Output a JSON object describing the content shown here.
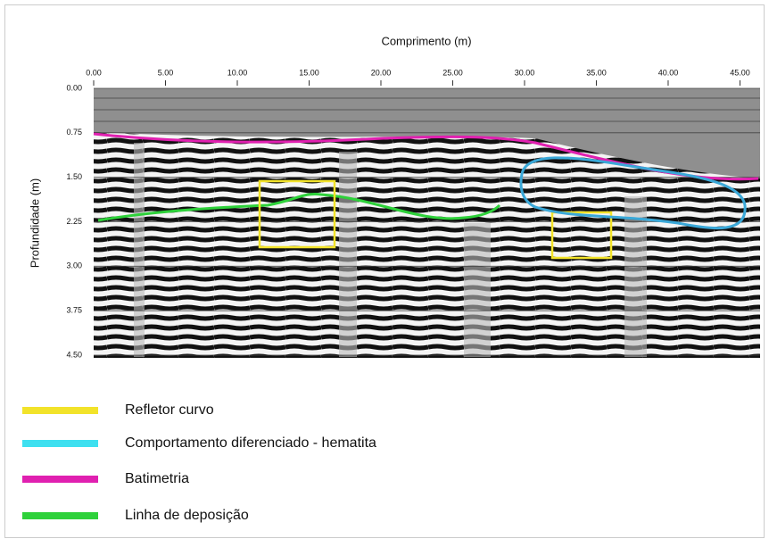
{
  "chart_data": {
    "type": "radargram",
    "xlabel": "Comprimento (m)",
    "ylabel": "Profundidade (m)",
    "xlim": [
      0,
      46.4
    ],
    "xticks": [
      {
        "value": 0,
        "label": "0.00"
      },
      {
        "value": 5,
        "label": "5.00"
      },
      {
        "value": 10,
        "label": "10.00"
      },
      {
        "value": 15,
        "label": "15.00"
      },
      {
        "value": 20,
        "label": "20.00"
      },
      {
        "value": 25,
        "label": "25.00"
      },
      {
        "value": 30,
        "label": "30.00"
      },
      {
        "value": 35,
        "label": "35.00"
      },
      {
        "value": 40,
        "label": "40.00"
      },
      {
        "value": 45,
        "label": "45.00"
      }
    ],
    "ylim": [
      0,
      4.5
    ],
    "y_inverted": true,
    "yticks": [
      {
        "value": 0,
        "label": "0.00"
      },
      {
        "value": 0.75,
        "label": "0.75"
      },
      {
        "value": 1.5,
        "label": "1.50"
      },
      {
        "value": 2.25,
        "label": "2.25"
      },
      {
        "value": 3,
        "label": "3.00"
      },
      {
        "value": 3.75,
        "label": "3.75"
      },
      {
        "value": 4.5,
        "label": "4.50"
      }
    ],
    "grid": true,
    "legend": [
      {
        "label": "Refletor curvo",
        "color": "#f2e32a"
      },
      {
        "label": "Comportamento diferenciado - hematita",
        "color": "#3ee0f0"
      },
      {
        "label": "Batimetria",
        "color": "#e020b0"
      },
      {
        "label": "Linha de deposição",
        "color": "#2ed13a"
      }
    ]
  }
}
